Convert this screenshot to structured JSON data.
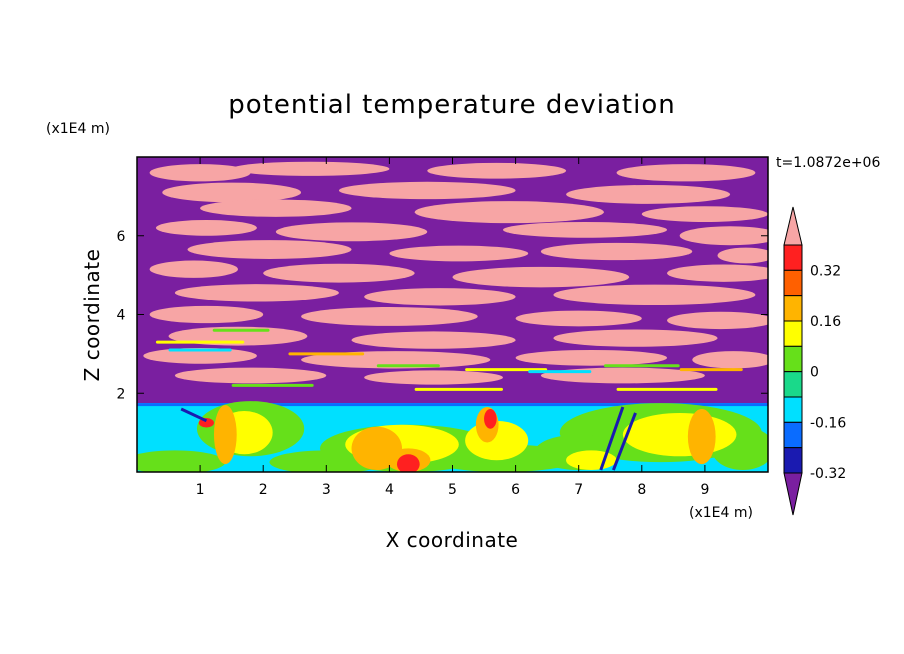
{
  "chart_data": {
    "type": "heatmap",
    "title": "potential temperature deviation",
    "xlabel": "X coordinate",
    "ylabel": "Z coordinate",
    "x_unit": "(x1E4 m)",
    "y_unit": "(x1E4 m)",
    "time_label": "t=1.0872e+06",
    "xlim": [
      0,
      10
    ],
    "ylim": [
      0,
      8
    ],
    "x_ticks": [
      "1",
      "2",
      "3",
      "4",
      "5",
      "6",
      "7",
      "8",
      "9"
    ],
    "y_ticks": [
      "2",
      "4",
      "6"
    ],
    "colorbar": {
      "labels": [
        "0.32",
        "0.16",
        "0",
        "-0.16",
        "-0.32"
      ],
      "levels": [
        -0.4,
        -0.32,
        -0.24,
        -0.16,
        -0.08,
        0,
        0.08,
        0.16,
        0.24,
        0.32,
        0.4
      ],
      "colors": [
        "#7a1fa0",
        "#1a1ab0",
        "#0a6cff",
        "#00e0ff",
        "#1ad98a",
        "#66e01a",
        "#ffff00",
        "#ffb400",
        "#ff6000",
        "#ff2020",
        "#f7a5a5"
      ],
      "extend": "both"
    }
  },
  "colors": {
    "pink": "#f7a5a5",
    "purple": "#7a1fa0",
    "cyan": "#00e0ff",
    "green": "#66e01a",
    "yellow": "#ffff00",
    "orange": "#ffb400",
    "red": "#ff2020",
    "blue": "#0a6cff",
    "navy": "#1a1ab0"
  }
}
